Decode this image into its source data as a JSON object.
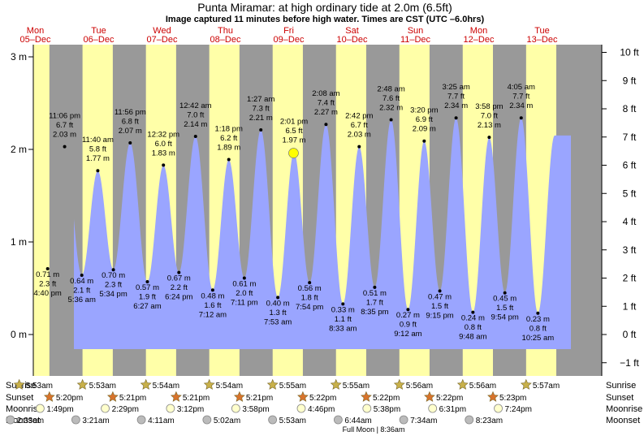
{
  "title": "Punta Miramar: at high  ordinary tide at 2.0m (6.5ft)",
  "subtitle": "Image captured 11 minutes before high water. Times are CST (UTC –6.0hrs)",
  "footer_note": "Full Moon | 8:36am",
  "row_labels": [
    "Sunrise",
    "Sunset",
    "Moonrise",
    "Moonset"
  ],
  "colors": {
    "night": "#999999",
    "day": "#ffffa8",
    "tide": "#9aa5ff",
    "date": "#cc0000",
    "sun_marker": "#c8b04a",
    "sunset_marker": "#d8732c",
    "moonrise_marker": "#ffffcc",
    "moonset_marker": "#bbbbbb",
    "current_marker": "#ffff00"
  },
  "chart_data": {
    "type": "area",
    "units": [
      "m",
      "ft"
    ],
    "ylim_m": [
      -0.55,
      3.12
    ],
    "ylim_ft": [
      -1.8,
      10.2
    ],
    "yticks_m": [
      {
        "value": 0,
        "label": "0 m"
      },
      {
        "value": 1,
        "label": "1 m"
      },
      {
        "value": 2,
        "label": "2 m"
      },
      {
        "value": 3,
        "label": "3 m"
      }
    ],
    "yticks_ft": [
      {
        "value": -1,
        "label": "−1 ft"
      },
      {
        "value": 0,
        "label": "0 ft"
      },
      {
        "value": 1,
        "label": "1 ft"
      },
      {
        "value": 2,
        "label": "2 ft"
      },
      {
        "value": 3,
        "label": "3 ft"
      },
      {
        "value": 4,
        "label": "4 ft"
      },
      {
        "value": 5,
        "label": "5 ft"
      },
      {
        "value": 6,
        "label": "6 ft"
      },
      {
        "value": 7,
        "label": "7 ft"
      },
      {
        "value": 8,
        "label": "8 ft"
      },
      {
        "value": 9,
        "label": "9 ft"
      },
      {
        "value": 10,
        "label": "10 ft"
      }
    ],
    "days": [
      {
        "day": "Mon",
        "date": "05–Dec"
      },
      {
        "day": "Tue",
        "date": "06–Dec"
      },
      {
        "day": "Wed",
        "date": "07–Dec"
      },
      {
        "day": "Thu",
        "date": "08–Dec"
      },
      {
        "day": "Fri",
        "date": "09–Dec"
      },
      {
        "day": "Sat",
        "date": "10–Dec"
      },
      {
        "day": "Sun",
        "date": "11–Dec"
      },
      {
        "day": "Mon",
        "date": "12–Dec"
      },
      {
        "day": "Tue",
        "date": "13–Dec"
      }
    ],
    "extremes": [
      {
        "type": "low",
        "day": 0,
        "time": "4:40 pm",
        "m": "0.71 m",
        "ft": "2.3 ft",
        "value": 0.71
      },
      {
        "type": "high",
        "day": 0,
        "time": "11:06 pm",
        "m": "2.03 m",
        "ft": "6.7 ft",
        "value": 2.03
      },
      {
        "type": "low",
        "day": 1,
        "time": "5:36 am",
        "m": "0.64 m",
        "ft": "2.1 ft",
        "value": 0.64
      },
      {
        "type": "high",
        "day": 1,
        "time": "11:40 am",
        "m": "1.77 m",
        "ft": "5.8 ft",
        "value": 1.77
      },
      {
        "type": "low",
        "day": 1,
        "time": "5:34 pm",
        "m": "0.70 m",
        "ft": "2.3 ft",
        "value": 0.7
      },
      {
        "type": "high",
        "day": 1,
        "time": "11:56 pm",
        "m": "2.07 m",
        "ft": "6.8 ft",
        "value": 2.07
      },
      {
        "type": "low",
        "day": 2,
        "time": "6:27 am",
        "m": "0.57 m",
        "ft": "1.9 ft",
        "value": 0.57
      },
      {
        "type": "high",
        "day": 2,
        "time": "12:32 pm",
        "m": "1.83 m",
        "ft": "6.0 ft",
        "value": 1.83
      },
      {
        "type": "low",
        "day": 2,
        "time": "6:24 pm",
        "m": "0.67 m",
        "ft": "2.2 ft",
        "value": 0.67
      },
      {
        "type": "high",
        "day": 3,
        "time": "12:42 am",
        "m": "2.14 m",
        "ft": "7.0 ft",
        "value": 2.14
      },
      {
        "type": "low",
        "day": 3,
        "time": "7:12 am",
        "m": "0.48 m",
        "ft": "1.6 ft",
        "value": 0.48
      },
      {
        "type": "high",
        "day": 3,
        "time": "1:18 pm",
        "m": "1.89 m",
        "ft": "6.2 ft",
        "value": 1.89
      },
      {
        "type": "low",
        "day": 3,
        "time": "7:11 pm",
        "m": "0.61 m",
        "ft": "2.0 ft",
        "value": 0.61
      },
      {
        "type": "high",
        "day": 4,
        "time": "1:27 am",
        "m": "2.21 m",
        "ft": "7.3 ft",
        "value": 2.21
      },
      {
        "type": "low",
        "day": 4,
        "time": "7:53 am",
        "m": "0.40 m",
        "ft": "1.3 ft",
        "value": 0.4
      },
      {
        "type": "high",
        "day": 4,
        "time": "2:01 pm",
        "m": "1.97 m",
        "ft": "6.5 ft",
        "value": 1.97
      },
      {
        "type": "low",
        "day": 4,
        "time": "7:54 pm",
        "m": "0.56 m",
        "ft": "1.8 ft",
        "value": 0.56
      },
      {
        "type": "high",
        "day": 5,
        "time": "2:08 am",
        "m": "2.27 m",
        "ft": "7.4 ft",
        "value": 2.27
      },
      {
        "type": "low",
        "day": 5,
        "time": "8:33 am",
        "m": "0.33 m",
        "ft": "1.1 ft",
        "value": 0.33
      },
      {
        "type": "high",
        "day": 5,
        "time": "2:42 pm",
        "m": "2.03 m",
        "ft": "6.7 ft",
        "value": 2.03
      },
      {
        "type": "low",
        "day": 5,
        "time": "8:35 pm",
        "m": "0.51 m",
        "ft": "1.7 ft",
        "value": 0.51
      },
      {
        "type": "high",
        "day": 6,
        "time": "2:48 am",
        "m": "2.32 m",
        "ft": "7.6 ft",
        "value": 2.32
      },
      {
        "type": "low",
        "day": 6,
        "time": "9:12 am",
        "m": "0.27 m",
        "ft": "0.9 ft",
        "value": 0.27
      },
      {
        "type": "high",
        "day": 6,
        "time": "3:20 pm",
        "m": "2.09 m",
        "ft": "6.9 ft",
        "value": 2.09
      },
      {
        "type": "low",
        "day": 6,
        "time": "9:15 pm",
        "m": "0.47 m",
        "ft": "1.5 ft",
        "value": 0.47
      },
      {
        "type": "high",
        "day": 7,
        "time": "3:25 am",
        "m": "2.34 m",
        "ft": "7.7 ft",
        "value": 2.34
      },
      {
        "type": "low",
        "day": 7,
        "time": "9:48 am",
        "m": "0.24 m",
        "ft": "0.8 ft",
        "value": 0.24
      },
      {
        "type": "high",
        "day": 7,
        "time": "3:58 pm",
        "m": "2.13 m",
        "ft": "7.0 ft",
        "value": 2.13
      },
      {
        "type": "low",
        "day": 7,
        "time": "9:54 pm",
        "m": "0.45 m",
        "ft": "1.5 ft",
        "value": 0.45
      },
      {
        "type": "high",
        "day": 8,
        "time": "4:05 am",
        "m": "2.34 m",
        "ft": "7.7 ft",
        "value": 2.34
      },
      {
        "type": "low",
        "day": 8,
        "time": "10:25 am",
        "m": "0.23 m",
        "ft": "0.8 ft",
        "value": 0.23
      }
    ],
    "current": {
      "day": 4,
      "time": "1:50 pm",
      "value": 1.96
    },
    "sunrise": [
      "5:53am",
      "5:53am",
      "5:54am",
      "5:54am",
      "5:55am",
      "5:55am",
      "5:56am",
      "5:56am",
      "5:57am"
    ],
    "sunset": [
      "5:20pm",
      "5:21pm",
      "5:21pm",
      "5:21pm",
      "5:22pm",
      "5:22pm",
      "5:22pm",
      "5:23pm"
    ],
    "moonrise": [
      "1:49pm",
      "2:29pm",
      "3:12pm",
      "3:58pm",
      "4:46pm",
      "5:38pm",
      "6:31pm",
      "7:24pm"
    ],
    "moonset": [
      "2:33am",
      "3:21am",
      "4:11am",
      "5:02am",
      "5:53am",
      "6:44am",
      "7:34am",
      "8:23am"
    ]
  }
}
